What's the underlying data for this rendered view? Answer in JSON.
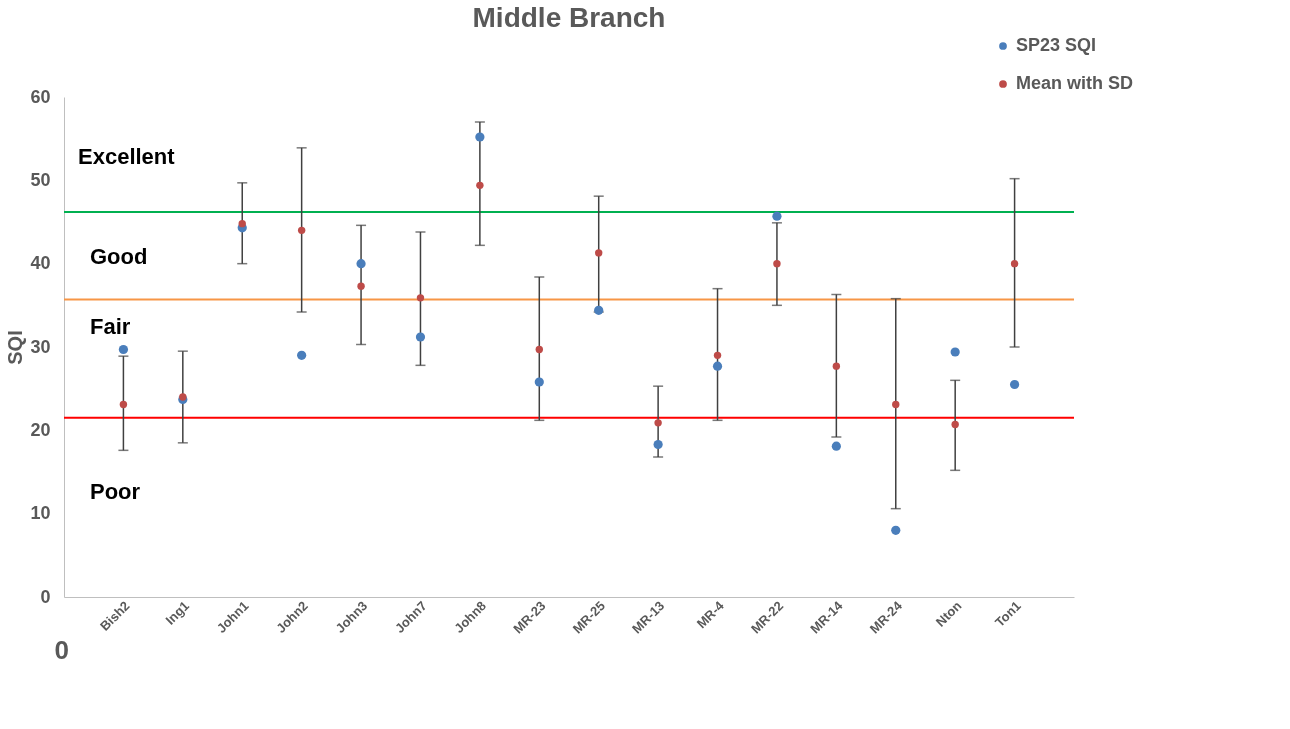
{
  "chart_data": {
    "type": "scatter",
    "title": "Middle Branch",
    "ylabel": "SQI",
    "xlabel": "0",
    "categories": [
      "Bish2",
      "Ing1",
      "John1",
      "John2",
      "John3",
      "John7",
      "John8",
      "MR-23",
      "MR-25",
      "MR-13",
      "MR-4",
      "MR-22",
      "MR-14",
      "MR-24",
      "Nton",
      "Ton1"
    ],
    "series": [
      {
        "name": "SP23 SQI",
        "color": "#4a7ebb",
        "values": [
          29.7,
          23.7,
          44.3,
          29.0,
          40.0,
          31.2,
          55.2,
          25.8,
          34.4,
          18.3,
          27.7,
          45.7,
          18.1,
          8.0,
          29.4,
          25.5
        ]
      },
      {
        "name": "Mean with SD",
        "color": "#be4b48",
        "values": [
          23.1,
          24.0,
          44.8,
          44.0,
          37.3,
          35.9,
          49.4,
          29.7,
          41.3,
          20.9,
          29.0,
          40.0,
          27.7,
          23.1,
          20.7,
          40.0
        ],
        "errors": [
          [
            17.6,
            28.9
          ],
          [
            18.5,
            29.5
          ],
          [
            40.0,
            49.7
          ],
          [
            34.2,
            53.9
          ],
          [
            30.3,
            44.6
          ],
          [
            27.8,
            43.8
          ],
          [
            42.2,
            57.0
          ],
          [
            21.2,
            38.4
          ],
          [
            34.2,
            48.1
          ],
          [
            16.8,
            25.3
          ],
          [
            21.2,
            37.0
          ],
          [
            35.0,
            44.9
          ],
          [
            19.2,
            36.3
          ],
          [
            10.6,
            35.8
          ],
          [
            15.2,
            26.0
          ],
          [
            30.0,
            50.2
          ]
        ]
      }
    ],
    "ylim": [
      0,
      60
    ],
    "yticks": [
      0,
      10,
      20,
      30,
      40,
      50,
      60
    ],
    "grid": false,
    "legend": "top right",
    "marker": "circle",
    "ref_lines": [
      {
        "axis": "y",
        "value": 46.2,
        "color": "#00b050"
      },
      {
        "axis": "y",
        "value": 35.7,
        "color": "#f79646"
      },
      {
        "axis": "y",
        "value": 21.5,
        "color": "#ff0000"
      }
    ],
    "annotations": [
      "Excellent",
      "Good",
      "Fair",
      "Poor"
    ]
  }
}
